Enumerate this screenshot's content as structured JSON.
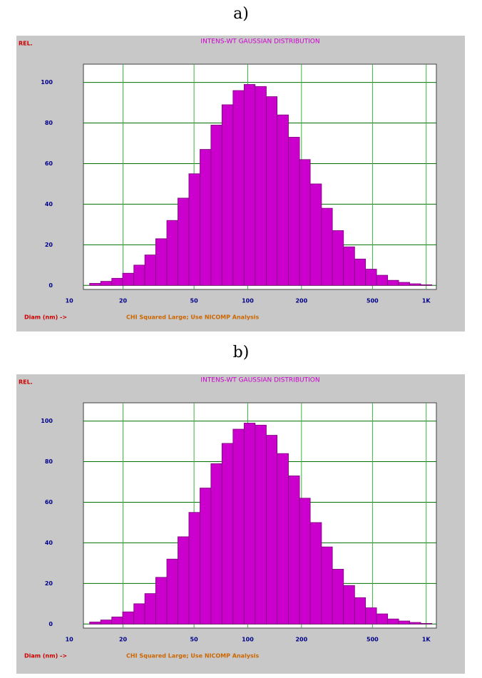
{
  "chart_data": [
    {
      "type": "histogram",
      "label": "a)",
      "title": "INTENS-WT GAUSSIAN DISTRIBUTION",
      "y_label": "REL.",
      "x_label": "Diam (nm) ->",
      "note": "CHI Squared Large; Use NICOMP Analysis",
      "bins": [
        13.0,
        15.0,
        17.3,
        19.9,
        23.0,
        26.5,
        30.5,
        35.2,
        40.6,
        46.8,
        54.0,
        62.2,
        71.7,
        82.7,
        95.4,
        110,
        127,
        146,
        169,
        195,
        224,
        259,
        298,
        344,
        397,
        457,
        527,
        608,
        701,
        808,
        932,
        1075
      ],
      "values": [
        1,
        2,
        3.5,
        6,
        10,
        15,
        23,
        32,
        43,
        55,
        67,
        79,
        89,
        96,
        99,
        98,
        93,
        84,
        73,
        62,
        50,
        38,
        27,
        19,
        13,
        8,
        5,
        2.5,
        1.5,
        0.8,
        0.3
      ],
      "color": "#cc00cc",
      "log_x": true,
      "grid": true,
      "xlim": [
        12,
        1140
      ],
      "xticks": [
        10,
        20,
        50,
        100,
        200,
        500,
        {
          "value": 1000,
          "label": "1K"
        }
      ],
      "ylim": [
        -2,
        109
      ],
      "yticks": [
        0,
        20,
        40,
        60,
        80,
        100
      ]
    },
    {
      "type": "histogram",
      "label": "b)",
      "title": "INTENS-WT GAUSSIAN DISTRIBUTION",
      "y_label": "REL.",
      "x_label": "Diam (nm) ->",
      "note": "CHI Squared Large; Use NICOMP Analysis",
      "bins": [
        13.0,
        15.0,
        17.3,
        19.9,
        23.0,
        26.5,
        30.5,
        35.2,
        40.6,
        46.8,
        54.0,
        62.2,
        71.7,
        82.7,
        95.4,
        110,
        127,
        146,
        169,
        195,
        224,
        259,
        298,
        344,
        397,
        457,
        527,
        608,
        701,
        808,
        932,
        1075
      ],
      "values": [
        1,
        2,
        3.5,
        6,
        10,
        15,
        23,
        32,
        43,
        55,
        67,
        79,
        89,
        96,
        99,
        98,
        93,
        84,
        73,
        62,
        50,
        38,
        27,
        19,
        13,
        8,
        5,
        2.5,
        1.5,
        0.8,
        0.3
      ],
      "color": "#cc00cc",
      "log_x": true,
      "grid": true,
      "xlim": [
        12,
        1140
      ],
      "xticks": [
        10,
        20,
        50,
        100,
        200,
        500,
        {
          "value": 1000,
          "label": "1K"
        }
      ],
      "ylim": [
        -2,
        109
      ],
      "yticks": [
        0,
        20,
        40,
        60,
        80,
        100
      ]
    }
  ]
}
